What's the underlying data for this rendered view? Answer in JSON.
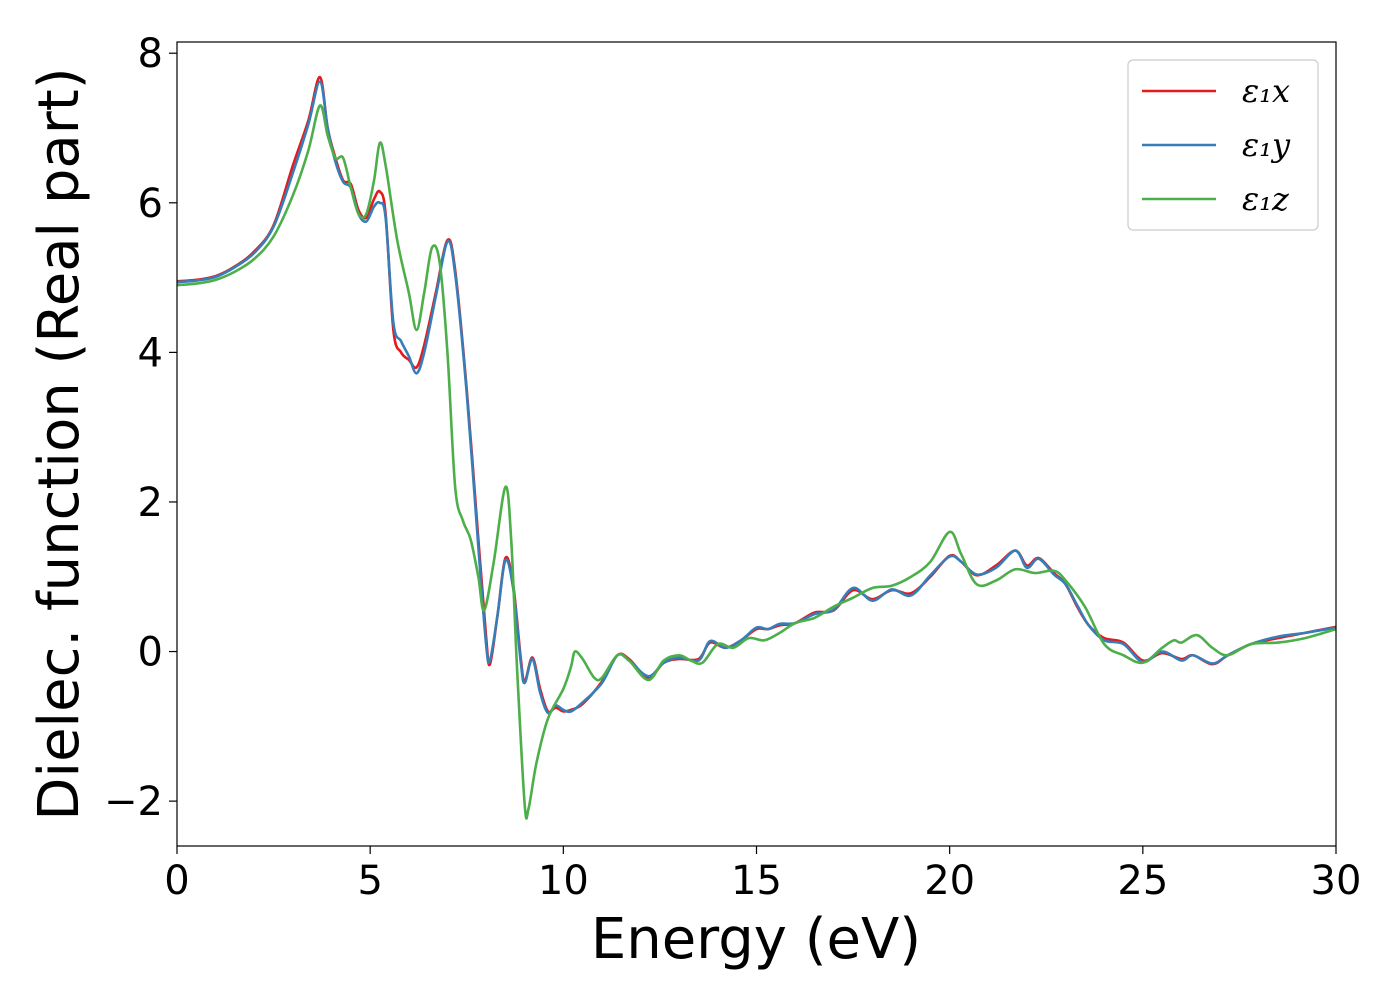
{
  "chart_data": {
    "type": "line",
    "title": "",
    "xlabel": "Energy (eV)",
    "ylabel": "Dielec. function (Real part)",
    "xlim": [
      0,
      30
    ],
    "ylim": [
      -2.6,
      8.15
    ],
    "xticks": [
      0,
      5,
      10,
      15,
      20,
      25,
      30
    ],
    "xtick_labels": [
      "0",
      "5",
      "10",
      "15",
      "20",
      "25",
      "30"
    ],
    "yticks": [
      -2,
      0,
      2,
      4,
      6,
      8
    ],
    "ytick_labels": [
      "−2",
      "0",
      "2",
      "4",
      "6",
      "8"
    ],
    "grid": false,
    "legend_position": "top-right",
    "series": [
      {
        "name": "ε₁x",
        "color": "#e41a1c",
        "points": [
          [
            0,
            4.95
          ],
          [
            0.5,
            4.97
          ],
          [
            1,
            5.02
          ],
          [
            1.5,
            5.15
          ],
          [
            2,
            5.35
          ],
          [
            2.5,
            5.7
          ],
          [
            3,
            6.5
          ],
          [
            3.4,
            7.1
          ],
          [
            3.7,
            7.68
          ],
          [
            3.9,
            7.0
          ],
          [
            4.1,
            6.6
          ],
          [
            4.3,
            6.3
          ],
          [
            4.5,
            6.25
          ],
          [
            4.7,
            5.9
          ],
          [
            4.9,
            5.8
          ],
          [
            5.1,
            6.05
          ],
          [
            5.25,
            6.15
          ],
          [
            5.4,
            5.85
          ],
          [
            5.6,
            4.3
          ],
          [
            5.8,
            4.0
          ],
          [
            6.0,
            3.9
          ],
          [
            6.2,
            3.8
          ],
          [
            6.4,
            4.1
          ],
          [
            6.7,
            4.8
          ],
          [
            7.0,
            5.5
          ],
          [
            7.2,
            5.1
          ],
          [
            7.5,
            3.5
          ],
          [
            7.8,
            1.5
          ],
          [
            8.0,
            0.2
          ],
          [
            8.1,
            -0.17
          ],
          [
            8.3,
            0.5
          ],
          [
            8.5,
            1.25
          ],
          [
            8.7,
            0.9
          ],
          [
            8.9,
            -0.1
          ],
          [
            9.0,
            -0.4
          ],
          [
            9.2,
            -0.08
          ],
          [
            9.4,
            -0.5
          ],
          [
            9.6,
            -0.8
          ],
          [
            9.8,
            -0.75
          ],
          [
            10.0,
            -0.8
          ],
          [
            10.2,
            -0.78
          ],
          [
            10.5,
            -0.7
          ],
          [
            11.0,
            -0.4
          ],
          [
            11.4,
            -0.05
          ],
          [
            11.7,
            -0.1
          ],
          [
            12.2,
            -0.35
          ],
          [
            12.6,
            -0.15
          ],
          [
            13.0,
            -0.1
          ],
          [
            13.5,
            -0.1
          ],
          [
            13.8,
            0.12
          ],
          [
            14.2,
            0.05
          ],
          [
            14.6,
            0.15
          ],
          [
            15.0,
            0.3
          ],
          [
            15.3,
            0.3
          ],
          [
            15.6,
            0.35
          ],
          [
            16.0,
            0.38
          ],
          [
            16.5,
            0.52
          ],
          [
            17.0,
            0.55
          ],
          [
            17.5,
            0.82
          ],
          [
            18.0,
            0.7
          ],
          [
            18.5,
            0.82
          ],
          [
            19.0,
            0.78
          ],
          [
            19.5,
            1.0
          ],
          [
            20.0,
            1.28
          ],
          [
            20.3,
            1.2
          ],
          [
            20.7,
            1.02
          ],
          [
            21.2,
            1.15
          ],
          [
            21.7,
            1.35
          ],
          [
            22.0,
            1.15
          ],
          [
            22.3,
            1.25
          ],
          [
            22.7,
            1.05
          ],
          [
            23.0,
            0.9
          ],
          [
            23.3,
            0.6
          ],
          [
            23.6,
            0.35
          ],
          [
            24.0,
            0.18
          ],
          [
            24.5,
            0.12
          ],
          [
            25.0,
            -0.12
          ],
          [
            25.5,
            -0.02
          ],
          [
            26.0,
            -0.1
          ],
          [
            26.3,
            -0.05
          ],
          [
            26.8,
            -0.17
          ],
          [
            27.2,
            -0.05
          ],
          [
            27.8,
            0.1
          ],
          [
            28.5,
            0.18
          ],
          [
            29.2,
            0.25
          ],
          [
            30,
            0.33
          ]
        ]
      },
      {
        "name": "ε₁y",
        "color": "#377eb8",
        "points": [
          [
            0,
            4.94
          ],
          [
            0.5,
            4.96
          ],
          [
            1,
            5.01
          ],
          [
            1.5,
            5.14
          ],
          [
            2,
            5.33
          ],
          [
            2.5,
            5.68
          ],
          [
            3,
            6.4
          ],
          [
            3.4,
            7.05
          ],
          [
            3.7,
            7.62
          ],
          [
            3.9,
            7.0
          ],
          [
            4.1,
            6.55
          ],
          [
            4.3,
            6.28
          ],
          [
            4.5,
            6.2
          ],
          [
            4.7,
            5.85
          ],
          [
            4.9,
            5.75
          ],
          [
            5.1,
            5.95
          ],
          [
            5.25,
            6.0
          ],
          [
            5.4,
            5.8
          ],
          [
            5.6,
            4.4
          ],
          [
            5.8,
            4.15
          ],
          [
            6.0,
            3.95
          ],
          [
            6.2,
            3.72
          ],
          [
            6.4,
            4.0
          ],
          [
            6.7,
            4.75
          ],
          [
            7.0,
            5.48
          ],
          [
            7.2,
            5.05
          ],
          [
            7.5,
            3.45
          ],
          [
            7.8,
            1.4
          ],
          [
            8.0,
            0.1
          ],
          [
            8.1,
            -0.12
          ],
          [
            8.3,
            0.5
          ],
          [
            8.5,
            1.22
          ],
          [
            8.7,
            0.85
          ],
          [
            8.9,
            -0.15
          ],
          [
            9.0,
            -0.42
          ],
          [
            9.2,
            -0.1
          ],
          [
            9.4,
            -0.55
          ],
          [
            9.6,
            -0.82
          ],
          [
            9.8,
            -0.72
          ],
          [
            10.0,
            -0.78
          ],
          [
            10.2,
            -0.8
          ],
          [
            10.5,
            -0.68
          ],
          [
            11.0,
            -0.42
          ],
          [
            11.4,
            -0.05
          ],
          [
            11.7,
            -0.12
          ],
          [
            12.2,
            -0.33
          ],
          [
            12.6,
            -0.15
          ],
          [
            13.0,
            -0.08
          ],
          [
            13.5,
            -0.12
          ],
          [
            13.8,
            0.14
          ],
          [
            14.2,
            0.05
          ],
          [
            14.6,
            0.15
          ],
          [
            15.0,
            0.32
          ],
          [
            15.3,
            0.3
          ],
          [
            15.6,
            0.37
          ],
          [
            16.0,
            0.38
          ],
          [
            16.5,
            0.5
          ],
          [
            17.0,
            0.56
          ],
          [
            17.5,
            0.85
          ],
          [
            18.0,
            0.68
          ],
          [
            18.5,
            0.83
          ],
          [
            19.0,
            0.75
          ],
          [
            19.5,
            1.02
          ],
          [
            20.0,
            1.27
          ],
          [
            20.3,
            1.2
          ],
          [
            20.7,
            1.03
          ],
          [
            21.2,
            1.12
          ],
          [
            21.7,
            1.35
          ],
          [
            22.0,
            1.12
          ],
          [
            22.3,
            1.24
          ],
          [
            22.7,
            1.03
          ],
          [
            23.0,
            0.9
          ],
          [
            23.3,
            0.62
          ],
          [
            23.6,
            0.35
          ],
          [
            24.0,
            0.15
          ],
          [
            24.5,
            0.1
          ],
          [
            25.0,
            -0.14
          ],
          [
            25.5,
            0.0
          ],
          [
            26.0,
            -0.12
          ],
          [
            26.3,
            -0.05
          ],
          [
            26.8,
            -0.16
          ],
          [
            27.2,
            -0.05
          ],
          [
            27.8,
            0.1
          ],
          [
            28.5,
            0.2
          ],
          [
            29.2,
            0.25
          ],
          [
            30,
            0.32
          ]
        ]
      },
      {
        "name": "ε₁z",
        "color": "#4daf4a",
        "points": [
          [
            0,
            4.9
          ],
          [
            0.5,
            4.92
          ],
          [
            1,
            4.97
          ],
          [
            1.5,
            5.08
          ],
          [
            2,
            5.25
          ],
          [
            2.5,
            5.55
          ],
          [
            3,
            6.1
          ],
          [
            3.4,
            6.7
          ],
          [
            3.7,
            7.3
          ],
          [
            3.9,
            6.9
          ],
          [
            4.1,
            6.6
          ],
          [
            4.3,
            6.6
          ],
          [
            4.5,
            6.2
          ],
          [
            4.7,
            5.85
          ],
          [
            4.9,
            5.85
          ],
          [
            5.1,
            6.3
          ],
          [
            5.25,
            6.8
          ],
          [
            5.4,
            6.5
          ],
          [
            5.7,
            5.5
          ],
          [
            6.0,
            4.8
          ],
          [
            6.2,
            4.3
          ],
          [
            6.4,
            4.8
          ],
          [
            6.6,
            5.4
          ],
          [
            6.8,
            5.2
          ],
          [
            7.0,
            4.0
          ],
          [
            7.2,
            2.2
          ],
          [
            7.4,
            1.75
          ],
          [
            7.6,
            1.5
          ],
          [
            7.8,
            1.0
          ],
          [
            7.95,
            0.55
          ],
          [
            8.2,
            1.2
          ],
          [
            8.5,
            2.2
          ],
          [
            8.65,
            1.5
          ],
          [
            8.8,
            -0.2
          ],
          [
            9.0,
            -2.05
          ],
          [
            9.1,
            -2.1
          ],
          [
            9.3,
            -1.5
          ],
          [
            9.6,
            -0.9
          ],
          [
            10.0,
            -0.5
          ],
          [
            10.2,
            -0.2
          ],
          [
            10.3,
            0.0
          ],
          [
            10.5,
            -0.1
          ],
          [
            10.8,
            -0.35
          ],
          [
            11.0,
            -0.35
          ],
          [
            11.4,
            -0.05
          ],
          [
            11.7,
            -0.12
          ],
          [
            12.2,
            -0.38
          ],
          [
            12.6,
            -0.12
          ],
          [
            13.0,
            -0.05
          ],
          [
            13.3,
            -0.12
          ],
          [
            13.6,
            -0.15
          ],
          [
            14.0,
            0.1
          ],
          [
            14.4,
            0.05
          ],
          [
            14.8,
            0.18
          ],
          [
            15.2,
            0.15
          ],
          [
            15.6,
            0.25
          ],
          [
            16.0,
            0.38
          ],
          [
            16.5,
            0.45
          ],
          [
            17.0,
            0.6
          ],
          [
            17.5,
            0.72
          ],
          [
            18.0,
            0.85
          ],
          [
            18.5,
            0.88
          ],
          [
            19.0,
            1.0
          ],
          [
            19.5,
            1.2
          ],
          [
            20.0,
            1.6
          ],
          [
            20.3,
            1.3
          ],
          [
            20.7,
            0.9
          ],
          [
            21.2,
            0.95
          ],
          [
            21.7,
            1.1
          ],
          [
            22.2,
            1.05
          ],
          [
            22.7,
            1.08
          ],
          [
            23.0,
            0.95
          ],
          [
            23.5,
            0.6
          ],
          [
            24.0,
            0.1
          ],
          [
            24.5,
            -0.05
          ],
          [
            25.0,
            -0.15
          ],
          [
            25.5,
            0.05
          ],
          [
            25.8,
            0.15
          ],
          [
            26.0,
            0.12
          ],
          [
            26.4,
            0.22
          ],
          [
            26.8,
            0.05
          ],
          [
            27.2,
            -0.05
          ],
          [
            27.8,
            0.1
          ],
          [
            28.5,
            0.12
          ],
          [
            29.2,
            0.18
          ],
          [
            30,
            0.3
          ]
        ]
      }
    ]
  }
}
